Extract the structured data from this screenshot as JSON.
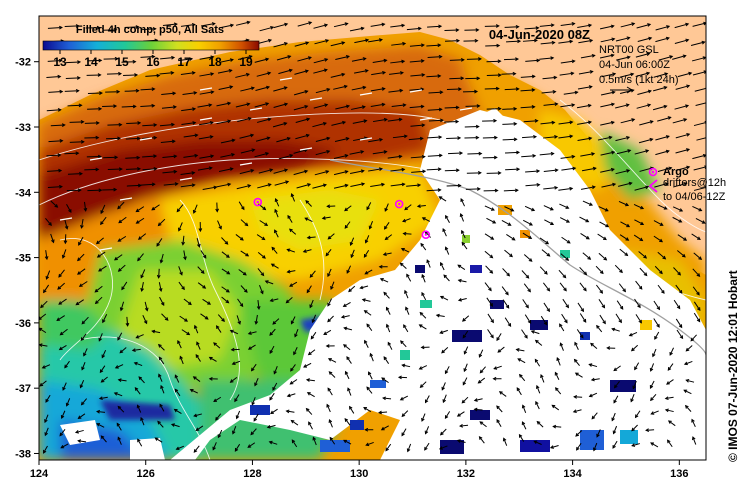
{
  "title": "04-Jun-2020 08Z",
  "colorbar": {
    "title": "Filled 4h comp, p50, All Sats",
    "ticks": [
      "13",
      "14",
      "15",
      "16",
      "17",
      "18",
      "19"
    ],
    "colors": [
      "#1a1aa8",
      "#1f5fd6",
      "#14a8d8",
      "#22c8a0",
      "#5ccc32",
      "#b4dc28",
      "#f0e000",
      "#f8a800",
      "#e06000",
      "#b42000",
      "#7a0a00"
    ]
  },
  "current_legend": {
    "line1": "NRT00 GSL",
    "line2": "04-Jun 06:00Z",
    "line3": "0.5m/s (1kt 24h)"
  },
  "argo_legend": {
    "label": "Argo",
    "line1": "drifters@12h",
    "line2": "to 04/06-12Z"
  },
  "credit": "© IMOS 07-Jun-2020 12:01 Hobart",
  "axes": {
    "x_ticks": [
      "124",
      "126",
      "128",
      "130",
      "132",
      "134",
      "136"
    ],
    "y_ticks": [
      "-32",
      "-33",
      "-34",
      "-35",
      "-36",
      "-37",
      "-38"
    ],
    "xlim": [
      124,
      136.5
    ],
    "ylim": [
      -38.1,
      -31.3
    ]
  },
  "argo_floats": [
    {
      "lon": 128.1,
      "lat": -34.15
    },
    {
      "lon": 130.75,
      "lat": -34.18
    },
    {
      "lon": 131.25,
      "lat": -34.65
    }
  ],
  "land_color": "#ffc896",
  "no_data_color": "#ffffff"
}
